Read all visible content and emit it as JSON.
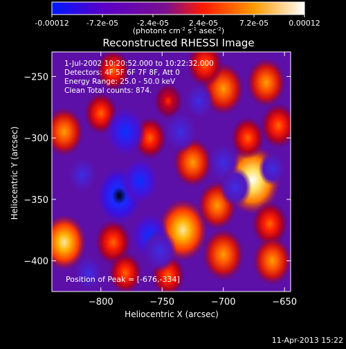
{
  "colorbar": {
    "ticks": [
      "-0.00012",
      "-7.2e-05",
      "-2.4e-05",
      "2.4e-05",
      "7.2e-05",
      "0.00012"
    ],
    "tick_values": [
      -0.00012,
      -7.2e-05,
      -2.4e-05,
      2.4e-05,
      7.2e-05,
      0.00012
    ],
    "unit_html": "(photons cm<tspan dy=\"-4\" font-size=\"7\">-2</tspan><tspan dy=\"4\"> s</tspan><tspan dy=\"-4\" font-size=\"7\">-1</tspan><tspan dy=\"4\"> asec</tspan><tspan dy=\"-4\" font-size=\"7\">-2</tspan><tspan dy=\"4\">)</tspan>",
    "unit": "(photons cm-2 s-1 asec-2)",
    "range": [
      -0.00012,
      0.00012
    ],
    "colors": [
      "#0018ff",
      "#5a00c8",
      "#9a1aa0",
      "#ff1a00",
      "#ff9a00",
      "#ffffff"
    ]
  },
  "chart_data": {
    "type": "heatmap",
    "title": "Reconstructed RHESSI Image",
    "xlabel": "Heliocentric X (arcsec)",
    "ylabel": "Heliocentric Y (arcsec)",
    "xlim": [
      -840,
      -645
    ],
    "ylim": [
      -425,
      -230
    ],
    "xticks": [
      -800,
      -750,
      -700,
      -650
    ],
    "yticks": [
      -250,
      -300,
      -350,
      -400
    ],
    "annotations": [
      "1-Jul-2002 10:20:52.000 to 10:22:32.000",
      "Detectors: 4F 5F 6F 7F 8F, Att 0",
      "Energy Range: 25.0 - 50.0 keV",
      "Clean    Total counts: 874."
    ],
    "peak_label": "Position of Peak = [-676,-334]",
    "peak": [
      -676,
      -334
    ],
    "sources": [
      {
        "x": -676,
        "y": -334,
        "value": 0.00012
      },
      {
        "x": -733,
        "y": -375,
        "value": 0.0001
      },
      {
        "x": -705,
        "y": -355,
        "value": 6e-05
      },
      {
        "x": -662,
        "y": -370,
        "value": 5e-05
      },
      {
        "x": -700,
        "y": -395,
        "value": 7e-05
      },
      {
        "x": -660,
        "y": -400,
        "value": 6e-05
      },
      {
        "x": -725,
        "y": -320,
        "value": 6e-05
      },
      {
        "x": -700,
        "y": -260,
        "value": 7e-05
      },
      {
        "x": -715,
        "y": -240,
        "value": 5e-05
      },
      {
        "x": -665,
        "y": -255,
        "value": 6e-05
      },
      {
        "x": -655,
        "y": -290,
        "value": 5e-05
      },
      {
        "x": -830,
        "y": -295,
        "value": 6e-05
      },
      {
        "x": -800,
        "y": -280,
        "value": 4e-05
      },
      {
        "x": -830,
        "y": -385,
        "value": 8e-05
      },
      {
        "x": -790,
        "y": -385,
        "value": 5e-05
      },
      {
        "x": -780,
        "y": -410,
        "value": 4e-05
      },
      {
        "x": -745,
        "y": -412,
        "value": 4e-05
      },
      {
        "x": -760,
        "y": -300,
        "value": 4e-05
      },
      {
        "x": -680,
        "y": -300,
        "value": 4e-05
      },
      {
        "x": -790,
        "y": -245,
        "value": 4e-05
      },
      {
        "x": -745,
        "y": -270,
        "value": 3e-05
      },
      {
        "x": -780,
        "y": -295,
        "value": -9e-05
      },
      {
        "x": -785,
        "y": -347,
        "value": -0.00012
      },
      {
        "x": -768,
        "y": -335,
        "value": -8e-05
      },
      {
        "x": -760,
        "y": -380,
        "value": -8e-05
      },
      {
        "x": -735,
        "y": -295,
        "value": -6e-05
      },
      {
        "x": -700,
        "y": -320,
        "value": -5e-05
      },
      {
        "x": -690,
        "y": -340,
        "value": -5e-05
      },
      {
        "x": -720,
        "y": -270,
        "value": -4e-05
      },
      {
        "x": -810,
        "y": -410,
        "value": -4e-05
      },
      {
        "x": -660,
        "y": -325,
        "value": -3e-05
      },
      {
        "x": -815,
        "y": -330,
        "value": -4e-05
      },
      {
        "x": -752,
        "y": -392,
        "value": -6e-05
      }
    ]
  },
  "footer": {
    "date": "11-Apr-2013 15:22"
  }
}
